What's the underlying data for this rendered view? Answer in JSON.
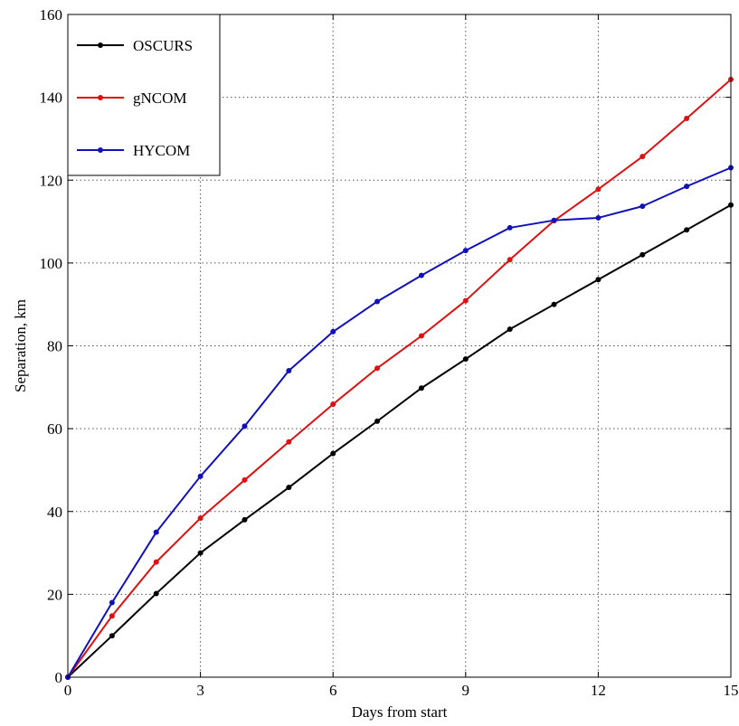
{
  "chart_data": {
    "type": "line",
    "xlabel": "Days from start",
    "ylabel": "Separation, km",
    "xlim": [
      0,
      15
    ],
    "ylim": [
      0,
      160
    ],
    "xticks": [
      0,
      3,
      6,
      9,
      12,
      15
    ],
    "yticks": [
      0,
      20,
      40,
      60,
      80,
      100,
      120,
      140,
      160
    ],
    "grid": true,
    "legend_position": "top-left",
    "x": [
      0,
      1,
      2,
      3,
      4,
      5,
      6,
      7,
      8,
      9,
      10,
      11,
      12,
      13,
      14,
      15
    ],
    "series": [
      {
        "name": "OSCURS",
        "color": "#000000",
        "values": [
          0,
          10,
          20.2,
          30,
          38,
          45.8,
          54,
          61.8,
          69.8,
          76.8,
          84,
          90,
          96,
          102,
          108,
          114
        ]
      },
      {
        "name": "gNCOM",
        "color": "#dd1111",
        "values": [
          0,
          14.8,
          27.8,
          38.4,
          47.6,
          56.8,
          65.9,
          74.6,
          82.4,
          90.9,
          100.8,
          110.2,
          117.8,
          125.7,
          134.9,
          144.3
        ]
      },
      {
        "name": "HYCOM",
        "color": "#1111bb",
        "values": [
          0,
          18,
          35,
          48.5,
          60.6,
          74,
          83.4,
          90.7,
          97,
          103,
          108.5,
          110.3,
          110.9,
          113.7,
          118.5,
          123
        ]
      }
    ]
  }
}
